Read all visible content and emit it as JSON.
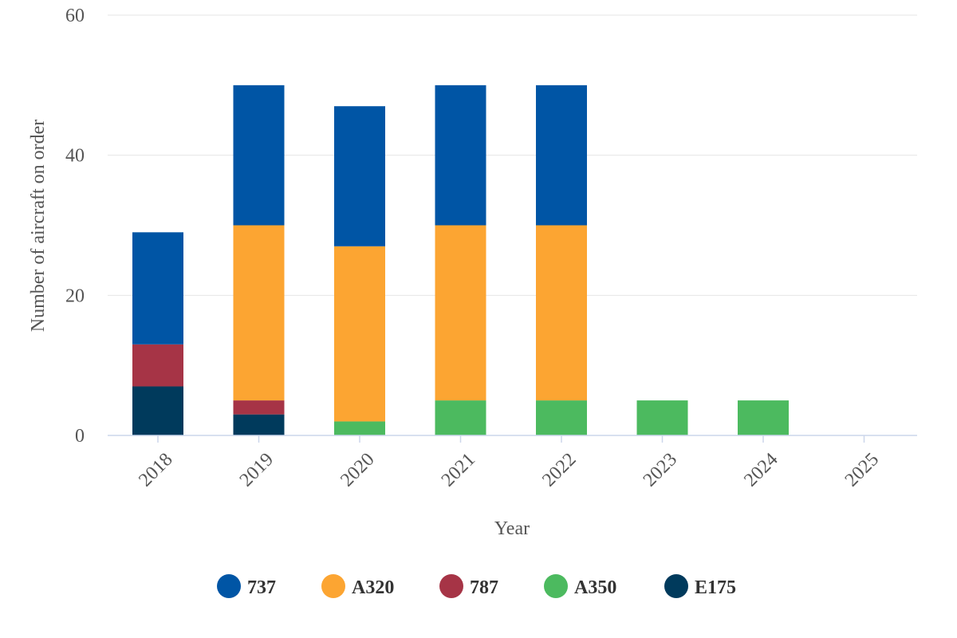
{
  "chart_data": {
    "type": "bar",
    "stacked": true,
    "title": "",
    "xlabel": "Year",
    "ylabel": "Number of aircraft on order",
    "categories": [
      "2018",
      "2019",
      "2020",
      "2021",
      "2022",
      "2023",
      "2024",
      "2025"
    ],
    "ylim": [
      0,
      60
    ],
    "yticks": [
      0,
      20,
      40,
      60
    ],
    "grid": true,
    "legend_position": "bottom",
    "series": [
      {
        "name": "E175",
        "color": "#003a5c",
        "values": [
          7,
          3,
          0,
          0,
          0,
          0,
          0,
          0
        ]
      },
      {
        "name": "787",
        "color": "#a63446",
        "values": [
          6,
          2,
          0,
          0,
          0,
          0,
          0,
          0
        ]
      },
      {
        "name": "A350",
        "color": "#4cba5f",
        "values": [
          0,
          0,
          2,
          5,
          5,
          5,
          5,
          0
        ]
      },
      {
        "name": "A320",
        "color": "#fca532",
        "values": [
          0,
          25,
          25,
          25,
          25,
          0,
          0,
          0
        ]
      },
      {
        "name": "737",
        "color": "#0055a5",
        "values": [
          16,
          20,
          20,
          20,
          20,
          0,
          0,
          0
        ]
      }
    ],
    "legend_order": [
      "737",
      "A320",
      "787",
      "A350",
      "E175"
    ]
  }
}
